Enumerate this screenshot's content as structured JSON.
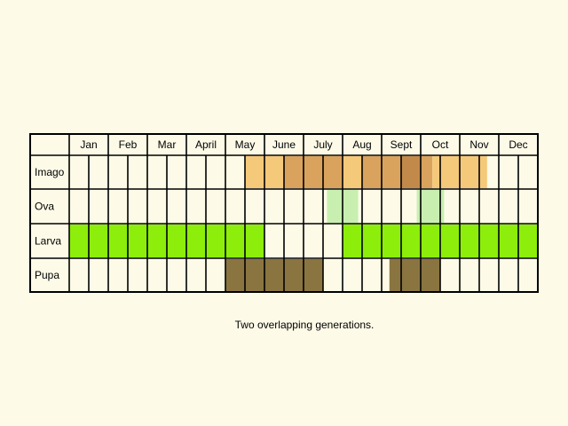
{
  "chart_data": {
    "type": "table",
    "title": "",
    "months": [
      "Jan",
      "Feb",
      "Mar",
      "April",
      "May",
      "June",
      "July",
      "Aug",
      "Sept",
      "Oct",
      "Nov",
      "Dec"
    ],
    "stages": [
      "Imago",
      "Ova",
      "Larva",
      "Pupa"
    ],
    "half_months_per_month": 2,
    "colors": {
      "grid": "#000000",
      "cell": "#fdfbe8",
      "imago_light": "#f5c97a",
      "imago_mid": "#d9a35e",
      "imago_dark": "#c28a4a",
      "ova": "#c8efb0",
      "larva": "#8cee0a",
      "pupa": "#8a7541"
    },
    "activity": [
      {
        "stage": "Imago",
        "from_month": 4.5,
        "to_month": 5.5,
        "intensity": "light"
      },
      {
        "stage": "Imago",
        "from_month": 5.5,
        "to_month": 7.0,
        "intensity": "mid"
      },
      {
        "stage": "Imago",
        "from_month": 7.0,
        "to_month": 7.5,
        "intensity": "light"
      },
      {
        "stage": "Imago",
        "from_month": 7.5,
        "to_month": 8.5,
        "intensity": "mid"
      },
      {
        "stage": "Imago",
        "from_month": 8.5,
        "to_month": 9.0,
        "intensity": "dark"
      },
      {
        "stage": "Imago",
        "from_month": 9.0,
        "to_month": 9.3,
        "intensity": "mid"
      },
      {
        "stage": "Imago",
        "from_month": 9.3,
        "to_month": 10.7,
        "intensity": "light"
      },
      {
        "stage": "Ova",
        "from_month": 6.6,
        "to_month": 7.4,
        "intensity": "normal"
      },
      {
        "stage": "Ova",
        "from_month": 8.9,
        "to_month": 9.6,
        "intensity": "normal"
      },
      {
        "stage": "Larva",
        "from_month": 0.0,
        "to_month": 5.0,
        "intensity": "normal"
      },
      {
        "stage": "Larva",
        "from_month": 7.0,
        "to_month": 12.0,
        "intensity": "normal"
      },
      {
        "stage": "Pupa",
        "from_month": 4.0,
        "to_month": 6.5,
        "intensity": "normal"
      },
      {
        "stage": "Pupa",
        "from_month": 8.2,
        "to_month": 9.5,
        "intensity": "normal"
      }
    ],
    "caption": "Two overlapping generations."
  }
}
